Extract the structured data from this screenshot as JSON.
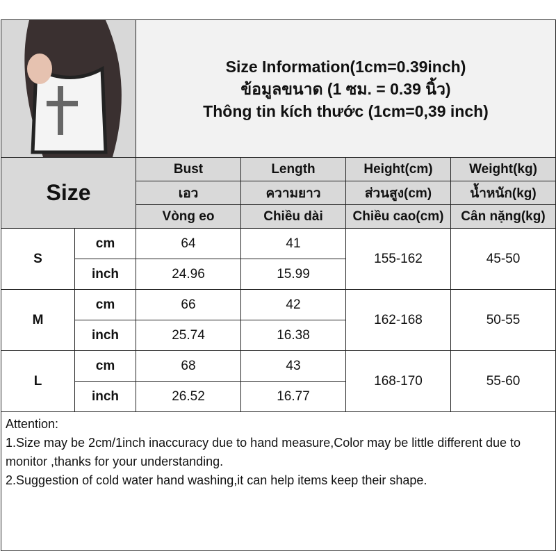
{
  "title": {
    "line1": "Size Information(1cm=0.39inch)",
    "line2": "ข้อมูลขนาด (1 ซม. = 0.39 นิ้ว)",
    "line3": "Thông tin kích thước (1cm=0,39 inch)"
  },
  "size_label": "Size",
  "columns": [
    {
      "en": "Bust",
      "th": "เอว",
      "vi": "Vòng eo"
    },
    {
      "en": "Length",
      "th": "ความยาว",
      "vi": "Chiều dài"
    },
    {
      "en": "Height(cm)",
      "th": "ส่วนสูง(cm)",
      "vi": "Chiều cao(cm)"
    },
    {
      "en": "Weight(kg)",
      "th": "น้ำหนัก(kg)",
      "vi": "Cân nặng(kg)"
    }
  ],
  "unit_labels": {
    "cm": "cm",
    "inch": "inch"
  },
  "rows": [
    {
      "size": "S",
      "cm": [
        "64",
        "41"
      ],
      "inch": [
        "24.96",
        "15.99"
      ],
      "height": "155-162",
      "weight": "45-50"
    },
    {
      "size": "M",
      "cm": [
        "66",
        "42"
      ],
      "inch": [
        "25.74",
        "16.38"
      ],
      "height": "162-168",
      "weight": "50-55"
    },
    {
      "size": "L",
      "cm": [
        "68",
        "43"
      ],
      "inch": [
        "26.52",
        "16.77"
      ],
      "height": "168-170",
      "weight": "55-60"
    }
  ],
  "attention": {
    "heading": "Attention:",
    "line1": "1.Size may be 2cm/1inch inaccuracy due to hand measure,Color may be little different due to monitor ,thanks for your understanding.",
    "line2": "2.Suggestion of cold water hand washing,it can help items keep their shape."
  }
}
